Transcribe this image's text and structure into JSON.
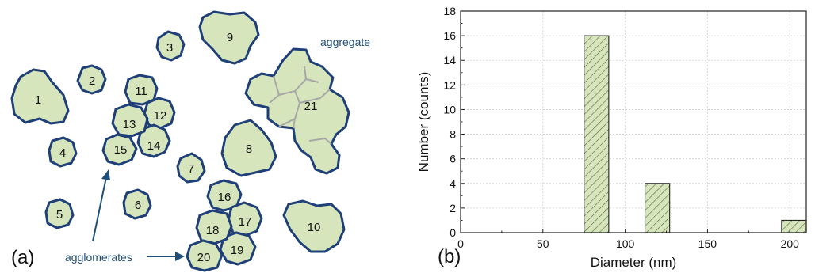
{
  "panel_a": {
    "label": "(a)",
    "aggregate_label": "aggregate",
    "agglomerates_label": "agglomerates",
    "particles": [
      {
        "id": "p1",
        "label": "1"
      },
      {
        "id": "p2",
        "label": "2"
      },
      {
        "id": "p3",
        "label": "3"
      },
      {
        "id": "p4",
        "label": "4"
      },
      {
        "id": "p5",
        "label": "5"
      },
      {
        "id": "p6",
        "label": "6"
      },
      {
        "id": "p7",
        "label": "7"
      },
      {
        "id": "p8",
        "label": "8"
      },
      {
        "id": "p9",
        "label": "9"
      },
      {
        "id": "p10",
        "label": "10"
      },
      {
        "id": "p11",
        "label": "11"
      },
      {
        "id": "p12",
        "label": "12"
      },
      {
        "id": "p13",
        "label": "13"
      },
      {
        "id": "p14",
        "label": "14"
      },
      {
        "id": "p15",
        "label": "15"
      },
      {
        "id": "p16",
        "label": "16"
      },
      {
        "id": "p17",
        "label": "17"
      },
      {
        "id": "p18",
        "label": "18"
      },
      {
        "id": "p19",
        "label": "19"
      },
      {
        "id": "p20",
        "label": "20"
      },
      {
        "id": "p21",
        "label": "21"
      }
    ],
    "colors": {
      "fill": "#d6e5bb",
      "outline": "#1f3f78",
      "annotation": "#1f4e79"
    }
  },
  "panel_b": {
    "label": "(b)"
  },
  "chart_data": {
    "type": "bar",
    "xlabel": "Diameter (nm)",
    "ylabel": "Number (counts)",
    "xlim": [
      0,
      210
    ],
    "ylim": [
      0,
      18
    ],
    "xticks": [
      0,
      50,
      100,
      150,
      200
    ],
    "yticks": [
      0,
      2,
      4,
      6,
      8,
      10,
      12,
      14,
      16,
      18
    ],
    "grid": true,
    "bar_style": "diagonal-hatch",
    "bar_color": "#d6e5bb",
    "bins": [
      {
        "x0": 75,
        "x1": 90,
        "value": 16
      },
      {
        "x0": 112,
        "x1": 127,
        "value": 4
      },
      {
        "x0": 195,
        "x1": 210,
        "value": 1
      }
    ]
  }
}
